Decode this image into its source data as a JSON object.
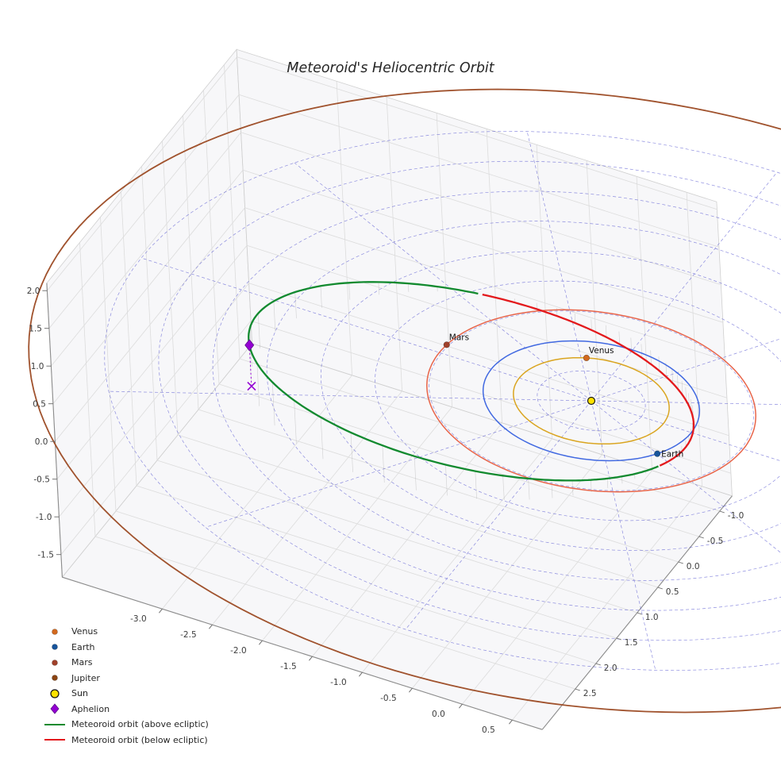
{
  "title": "Meteoroid's Heliocentric Orbit",
  "chart_data": {
    "type": "line",
    "projection": "3d",
    "title": "Meteoroid's Heliocentric Orbit",
    "axes": {
      "x_ticks": [
        -3.0,
        -2.5,
        -2.0,
        -1.5,
        -1.0,
        -0.5,
        0.0,
        0.5
      ],
      "y_ticks": [
        -1.0,
        -0.5,
        0.0,
        0.5,
        1.0,
        1.5,
        2.0,
        2.5
      ],
      "z_ticks": [
        2.0,
        1.5,
        1.0,
        0.5,
        0.0,
        -0.5,
        -1.0,
        -1.5
      ],
      "xlim": [
        -4.0,
        0.8
      ],
      "ylim": [
        -1.3,
        3.3
      ],
      "zlim": [
        -1.8,
        2.1
      ],
      "units": "AU",
      "grid": true
    },
    "ecliptic_grid": {
      "style": "dashed",
      "color": "#3434C8",
      "circle_radii_au": [
        0.5,
        1.0,
        1.5,
        2.0,
        2.5,
        3.0,
        3.5,
        4.0,
        4.5
      ],
      "radial_line_count": 12,
      "max_radius_au": 4.5
    },
    "sun": {
      "label": "Sun",
      "color": "#FFE200",
      "edge_color": "#1A1A1A",
      "position_au": [
        0,
        0,
        0
      ]
    },
    "planet_orbits": [
      {
        "name": "Venus",
        "orbit_radius_au": 0.72,
        "orbit_color": "#DAA520",
        "marker": {
          "visible": true,
          "label": "Venus",
          "longitude_deg": 244,
          "color": "#D2691E"
        }
      },
      {
        "name": "Earth",
        "orbit_radius_au": 1.0,
        "orbit_color": "#4169E1",
        "marker": {
          "visible": true,
          "label": "Earth",
          "longitude_deg": 30,
          "color": "#17549B"
        }
      },
      {
        "name": "Mars",
        "orbit_radius_au": 1.52,
        "orbit_color": "#E8654A",
        "marker": {
          "visible": true,
          "label": "Mars",
          "longitude_deg": 186,
          "color": "#A0402A"
        }
      },
      {
        "name": "Jupiter",
        "orbit_radius_au": 5.2,
        "orbit_color": "#A0522D",
        "marker": {
          "visible": false
        }
      }
    ],
    "meteoroid_orbit": {
      "semi_major_axis_au": 2.075,
      "eccentricity": 0.542,
      "inclination_deg": 11,
      "ascending_node_deg": 35,
      "argument_of_perihelion_deg": 297,
      "aphelion_au": 3.2,
      "perihelion_au": 0.95,
      "above_ecliptic_color": "#128A2F",
      "below_ecliptic_color": "#E3191C",
      "stem_color": "#888888"
    },
    "aphelion_marker": {
      "label": "Aphelion",
      "color": "#9400D3",
      "true_anomaly_deg": 180
    }
  },
  "legend": {
    "items": [
      {
        "label": "Venus",
        "swatch": "dot",
        "color": "#D2691E"
      },
      {
        "label": "Earth",
        "swatch": "dot",
        "color": "#17549B"
      },
      {
        "label": "Mars",
        "swatch": "dot",
        "color": "#A0402A"
      },
      {
        "label": "Jupiter",
        "swatch": "dot",
        "color": "#8B4513"
      },
      {
        "label": "Sun",
        "swatch": "sun",
        "color": "#FFE200"
      },
      {
        "label": "Aphelion",
        "swatch": "diamond",
        "color": "#9400D3"
      },
      {
        "label": "Meteoroid orbit (above ecliptic)",
        "swatch": "line",
        "color": "#128A2F"
      },
      {
        "label": "Meteoroid orbit (below ecliptic)",
        "swatch": "line",
        "color": "#E3191C"
      }
    ]
  }
}
